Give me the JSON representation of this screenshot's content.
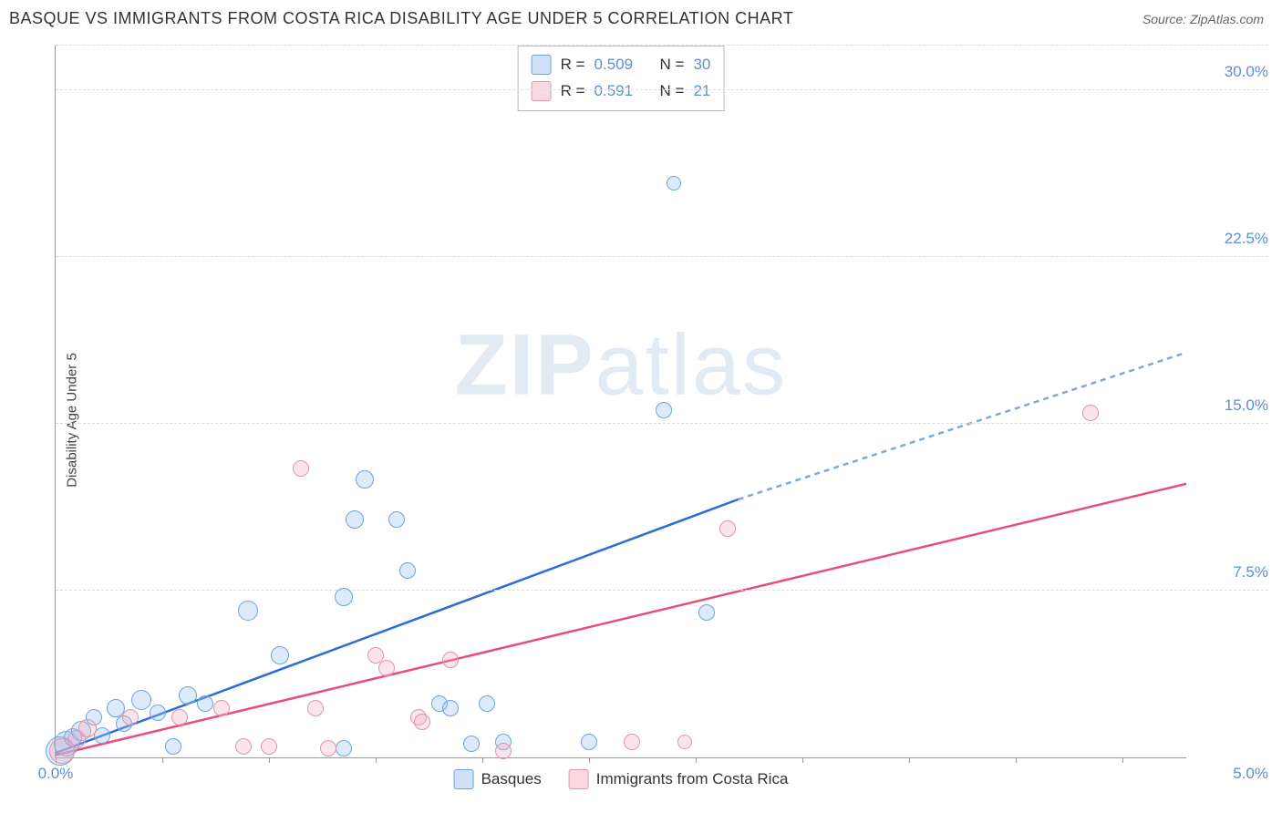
{
  "header": {
    "title": "BASQUE VS IMMIGRANTS FROM COSTA RICA DISABILITY AGE UNDER 5 CORRELATION CHART",
    "source": "Source: ZipAtlas.com"
  },
  "chart": {
    "type": "scatter",
    "y_label": "Disability Age Under 5",
    "xlim": [
      0,
      5.3
    ],
    "ylim": [
      0,
      32
    ],
    "x_ticks": [
      0,
      0.5,
      1.0,
      1.5,
      2.0,
      2.5,
      3.0,
      3.5,
      4.0,
      4.5,
      5.0
    ],
    "x_tick_labels": {
      "0": "0.0%",
      "5.0": "5.0%"
    },
    "y_grid": [
      7.5,
      15.0,
      22.5,
      30.0
    ],
    "y_tick_labels": [
      "7.5%",
      "15.0%",
      "22.5%",
      "30.0%"
    ],
    "tick_color": "#5b8fd6",
    "grid_color": "#dddddd",
    "background_color": "#ffffff",
    "marker_radius_base": 9,
    "series": [
      {
        "name": "Basques",
        "color_fill": "rgba(157,195,238,0.35)",
        "color_stroke": "#6fa3db",
        "class": "blue",
        "trend": {
          "x1": 0,
          "y1": 0.2,
          "x2_solid": 3.2,
          "y2_solid": 11.6,
          "x2_dash": 5.3,
          "y2_dash": 18.2,
          "solid_color": "#2e6bd6",
          "dash_color": "#7ea7e0",
          "width": 2.5
        },
        "points": [
          {
            "x": 0.02,
            "y": 0.3,
            "r": 16
          },
          {
            "x": 0.05,
            "y": 0.6,
            "r": 14
          },
          {
            "x": 0.08,
            "y": 0.9,
            "r": 10
          },
          {
            "x": 0.12,
            "y": 1.2,
            "r": 11
          },
          {
            "x": 0.18,
            "y": 1.8,
            "r": 9
          },
          {
            "x": 0.22,
            "y": 1.0,
            "r": 9
          },
          {
            "x": 0.28,
            "y": 2.2,
            "r": 10
          },
          {
            "x": 0.32,
            "y": 1.5,
            "r": 9
          },
          {
            "x": 0.4,
            "y": 2.6,
            "r": 11
          },
          {
            "x": 0.48,
            "y": 2.0,
            "r": 9
          },
          {
            "x": 0.55,
            "y": 0.5,
            "r": 9
          },
          {
            "x": 0.62,
            "y": 2.8,
            "r": 10
          },
          {
            "x": 0.9,
            "y": 6.6,
            "r": 11
          },
          {
            "x": 1.05,
            "y": 4.6,
            "r": 10
          },
          {
            "x": 1.35,
            "y": 7.2,
            "r": 10
          },
          {
            "x": 1.45,
            "y": 12.5,
            "r": 10
          },
          {
            "x": 1.4,
            "y": 10.7,
            "r": 10
          },
          {
            "x": 1.6,
            "y": 10.7,
            "r": 9
          },
          {
            "x": 1.65,
            "y": 8.4,
            "r": 9
          },
          {
            "x": 1.8,
            "y": 2.4,
            "r": 9
          },
          {
            "x": 1.85,
            "y": 2.2,
            "r": 9
          },
          {
            "x": 1.95,
            "y": 0.6,
            "r": 9
          },
          {
            "x": 2.02,
            "y": 2.4,
            "r": 9
          },
          {
            "x": 2.1,
            "y": 0.7,
            "r": 9
          },
          {
            "x": 2.5,
            "y": 0.7,
            "r": 9
          },
          {
            "x": 2.85,
            "y": 15.6,
            "r": 9
          },
          {
            "x": 2.9,
            "y": 25.8,
            "r": 8
          },
          {
            "x": 3.05,
            "y": 6.5,
            "r": 9
          },
          {
            "x": 1.35,
            "y": 0.4,
            "r": 9
          },
          {
            "x": 0.7,
            "y": 2.4,
            "r": 9
          }
        ]
      },
      {
        "name": "Immigrants from Costa Rica",
        "color_fill": "rgba(240,170,190,0.30)",
        "color_stroke": "#e295ac",
        "class": "pink",
        "trend": {
          "x1": 0,
          "y1": 0.1,
          "x2_solid": 5.3,
          "y2_solid": 12.3,
          "x2_dash": 5.3,
          "y2_dash": 12.3,
          "solid_color": "#e84c7a",
          "dash_color": "#e84c7a",
          "width": 2.5
        },
        "points": [
          {
            "x": 0.03,
            "y": 0.3,
            "r": 14
          },
          {
            "x": 0.1,
            "y": 0.8,
            "r": 10
          },
          {
            "x": 0.15,
            "y": 1.3,
            "r": 10
          },
          {
            "x": 0.35,
            "y": 1.8,
            "r": 9
          },
          {
            "x": 0.58,
            "y": 1.8,
            "r": 9
          },
          {
            "x": 0.78,
            "y": 2.2,
            "r": 9
          },
          {
            "x": 0.88,
            "y": 0.5,
            "r": 9
          },
          {
            "x": 1.0,
            "y": 0.5,
            "r": 9
          },
          {
            "x": 1.15,
            "y": 13.0,
            "r": 9
          },
          {
            "x": 1.22,
            "y": 2.2,
            "r": 9
          },
          {
            "x": 1.28,
            "y": 0.4,
            "r": 9
          },
          {
            "x": 1.5,
            "y": 4.6,
            "r": 9
          },
          {
            "x": 1.55,
            "y": 4.0,
            "r": 9
          },
          {
            "x": 1.7,
            "y": 1.8,
            "r": 9
          },
          {
            "x": 1.72,
            "y": 1.6,
            "r": 9
          },
          {
            "x": 1.85,
            "y": 4.4,
            "r": 9
          },
          {
            "x": 2.1,
            "y": 0.3,
            "r": 9
          },
          {
            "x": 2.7,
            "y": 0.7,
            "r": 9
          },
          {
            "x": 2.95,
            "y": 0.7,
            "r": 8
          },
          {
            "x": 3.15,
            "y": 10.3,
            "r": 9
          },
          {
            "x": 4.85,
            "y": 15.5,
            "r": 9
          }
        ]
      }
    ],
    "stats_box": {
      "rows": [
        {
          "swatch": "blue",
          "r": "0.509",
          "n": "30"
        },
        {
          "swatch": "pink",
          "r": "0.591",
          "n": "21"
        }
      ],
      "R_label": "R =",
      "N_label": "N ="
    },
    "bottom_legend": [
      {
        "swatch": "blue",
        "label": "Basques"
      },
      {
        "swatch": "pink",
        "label": "Immigrants from Costa Rica"
      }
    ],
    "watermark": {
      "bold": "ZIP",
      "rest": "atlas"
    }
  }
}
